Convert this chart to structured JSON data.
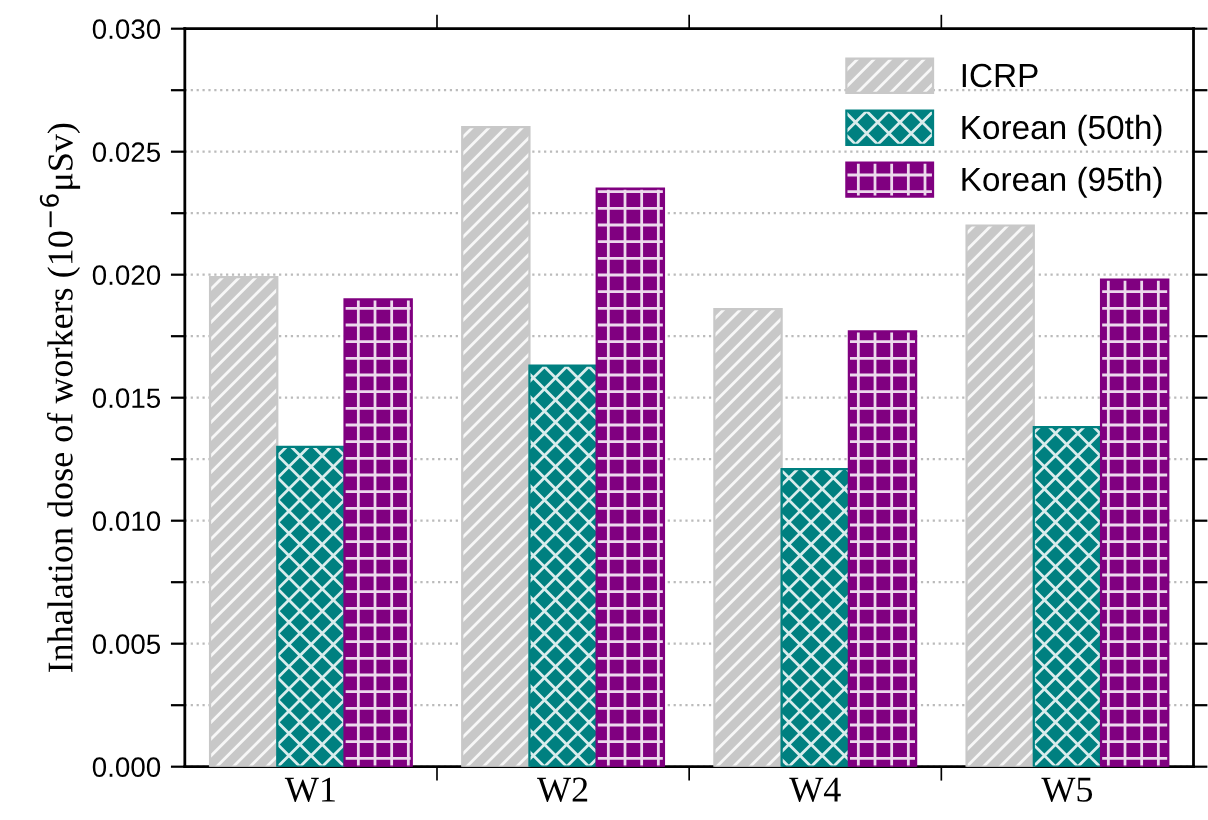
{
  "chart_data": {
    "type": "bar",
    "ylabel": "Inhalation dose of workers (10$^{−6}$μSv)",
    "categories": [
      "W1",
      "W2",
      "W4",
      "W5"
    ],
    "series": [
      {
        "name": "ICRP",
        "color": "#c8c8c8",
        "values": [
          0.0199,
          0.026,
          0.0186,
          0.022
        ]
      },
      {
        "name": "Korean (50th)",
        "color": "#008080",
        "values": [
          0.013,
          0.0163,
          0.0121,
          0.0138
        ]
      },
      {
        "name": "Korean (95th)",
        "color": "#800080",
        "values": [
          0.019,
          0.0235,
          0.0177,
          0.0198
        ]
      }
    ],
    "ylim": [
      0,
      0.03
    ],
    "yticks": [
      {
        "value": 0,
        "label": "0.000"
      },
      {
        "value": 0.0025,
        "label": null
      },
      {
        "value": 0.005,
        "label": "0.005"
      },
      {
        "value": 0.0075,
        "label": null
      },
      {
        "value": 0.01,
        "label": "0.010"
      },
      {
        "value": 0.0125,
        "label": null
      },
      {
        "value": 0.015,
        "label": "0.015"
      },
      {
        "value": 0.0175,
        "label": null
      },
      {
        "value": 0.02,
        "label": "0.020"
      },
      {
        "value": 0.0225,
        "label": null
      },
      {
        "value": 0.025,
        "label": "0.025"
      },
      {
        "value": 0.0275,
        "label": null
      },
      {
        "value": 0.03,
        "label": "0.030"
      }
    ],
    "grid": "y",
    "legend": "top right"
  }
}
